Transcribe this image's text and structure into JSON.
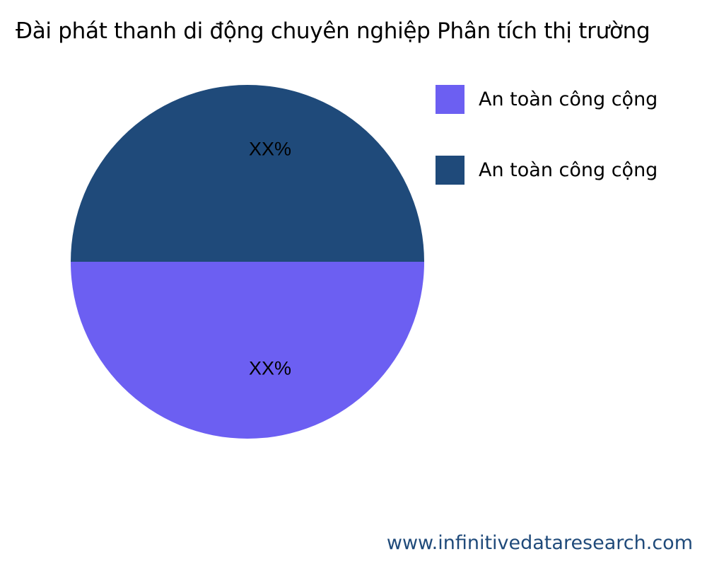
{
  "chart_data": {
    "type": "pie",
    "title": "Đài phát thanh di động chuyên nghiệp Phân tích thị trường",
    "slices": [
      {
        "name": "An toàn công cộng",
        "value": 50,
        "label": "XX%",
        "color": "#6c5ff2"
      },
      {
        "name": "An toàn công cộng",
        "value": 50,
        "label": "XX%",
        "color": "#1f4a7a"
      }
    ],
    "legend_position": "right"
  },
  "footer": {
    "website": "www.infinitivedataresearch.com"
  }
}
